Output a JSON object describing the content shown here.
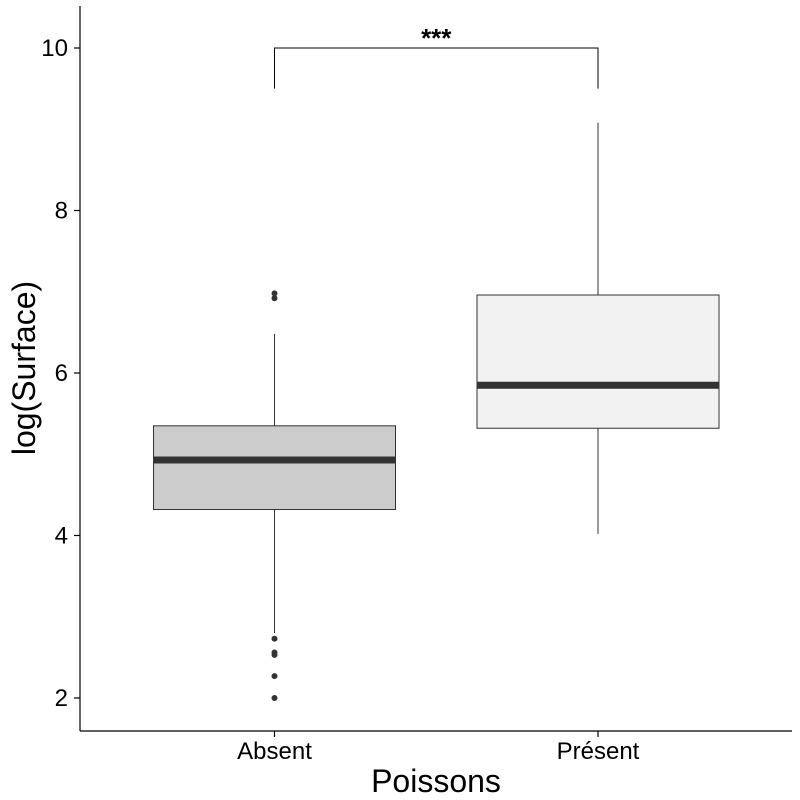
{
  "chart_data": {
    "type": "box",
    "title": "",
    "xlabel": "Poissons",
    "ylabel": "log(Surface)",
    "ylim": [
      1.6,
      10.5
    ],
    "yticks": [
      2,
      4,
      6,
      8,
      10
    ],
    "grid": false,
    "categories": [
      "Absent",
      "Présent"
    ],
    "boxes": [
      {
        "category": "Absent",
        "whisker_low": 2.8,
        "q1": 4.32,
        "median": 4.93,
        "q3": 5.35,
        "whisker_high": 6.48,
        "outliers": [
          2.0,
          2.27,
          2.53,
          2.56,
          2.73,
          6.92,
          6.98
        ],
        "fill": "#cccccc"
      },
      {
        "category": "Présent",
        "whisker_low": 4.02,
        "q1": 5.32,
        "median": 5.85,
        "q3": 6.96,
        "whisker_high": 9.08,
        "outliers": [],
        "fill": "#f2f2f2"
      }
    ],
    "significance": {
      "label": "***",
      "from": "Absent",
      "to": "Présent",
      "y": 10.0,
      "drop_to": 9.5
    },
    "colors": {
      "box_stroke": "#333333",
      "median": "#333333",
      "whisker": "#333333",
      "outlier": "#333333",
      "axis": "#000000"
    }
  }
}
